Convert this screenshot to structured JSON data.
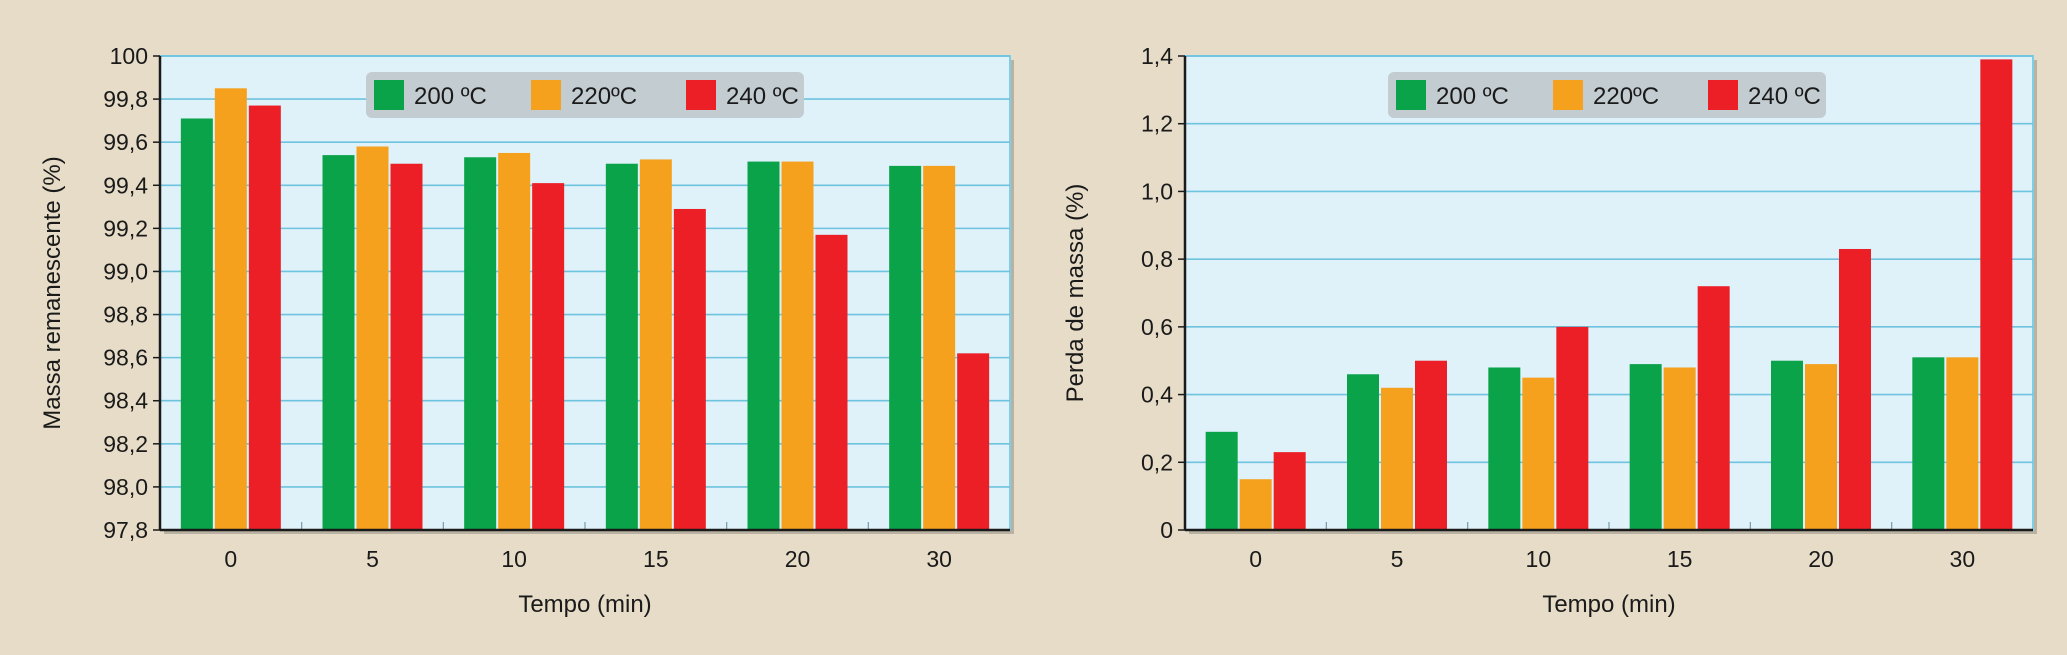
{
  "colors": {
    "background": "#e6dcc7",
    "plot_bg": "#dff1f9",
    "grid": "#6ec3df",
    "legend_bg": "#c3ccd1",
    "series": [
      "#0aa34a",
      "#f5a11d",
      "#ec1f27"
    ]
  },
  "chart_data": [
    {
      "type": "bar",
      "xlabel": "Tempo (min)",
      "ylabel": "Massa remanescente (%)",
      "ylim": [
        97.8,
        100
      ],
      "yticks": [
        "97,8",
        "98,0",
        "98,2",
        "98,4",
        "98,6",
        "98,8",
        "99,0",
        "99,2",
        "99,4",
        "99,6",
        "99,8",
        "100"
      ],
      "categories": [
        "0",
        "5",
        "10",
        "15",
        "20",
        "30"
      ],
      "legend_position": "top-center",
      "grid": true,
      "series": [
        {
          "name": "200 ºC",
          "values": [
            99.71,
            99.54,
            99.53,
            99.5,
            99.51,
            99.49
          ]
        },
        {
          "name": "220ºC",
          "values": [
            99.85,
            99.58,
            99.55,
            99.52,
            99.51,
            99.49
          ]
        },
        {
          "name": "240 ºC",
          "values": [
            99.77,
            99.5,
            99.41,
            99.29,
            99.17,
            98.62
          ]
        }
      ]
    },
    {
      "type": "bar",
      "xlabel": "Tempo (min)",
      "ylabel": "Perda de massa (%)",
      "ylim": [
        0,
        1.4
      ],
      "yticks": [
        "0",
        "0,2",
        "0,4",
        "0,6",
        "0,8",
        "1,0",
        "1,2",
        "1,4"
      ],
      "categories": [
        "0",
        "5",
        "10",
        "15",
        "20",
        "30"
      ],
      "legend_position": "top-center",
      "grid": true,
      "series": [
        {
          "name": "200 ºC",
          "values": [
            0.29,
            0.46,
            0.48,
            0.49,
            0.5,
            0.51
          ]
        },
        {
          "name": "220ºC",
          "values": [
            0.15,
            0.42,
            0.45,
            0.48,
            0.49,
            0.51
          ]
        },
        {
          "name": "240 ºC",
          "values": [
            0.23,
            0.5,
            0.6,
            0.72,
            0.83,
            1.39
          ]
        }
      ]
    }
  ]
}
